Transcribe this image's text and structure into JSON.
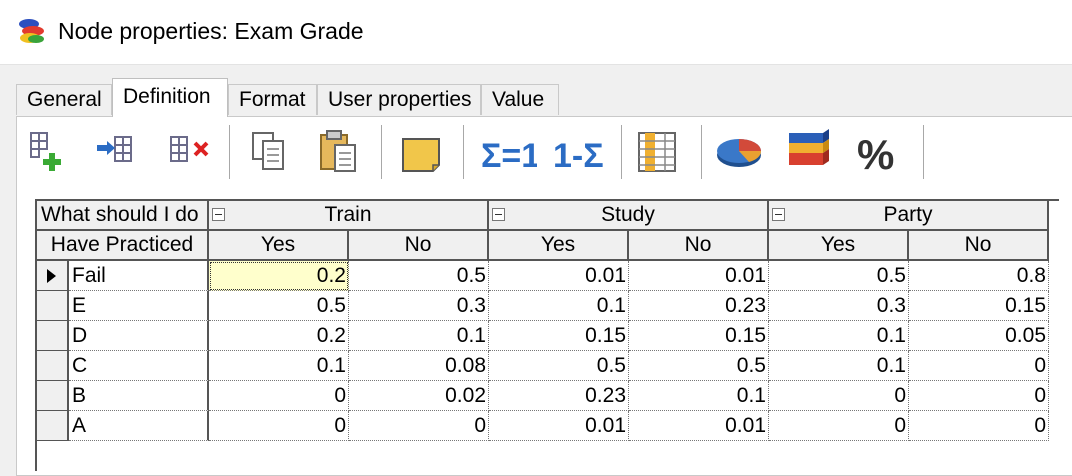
{
  "window": {
    "title": "Node properties: Exam Grade"
  },
  "tabs": [
    {
      "label": "General"
    },
    {
      "label": "Definition"
    },
    {
      "label": "Format"
    },
    {
      "label": "User properties"
    },
    {
      "label": "Value"
    }
  ],
  "active_tab": "Definition",
  "toolbar": {
    "buttons": [
      {
        "icon": "add-column-icon"
      },
      {
        "icon": "insert-column-icon"
      },
      {
        "icon": "delete-column-icon"
      },
      {
        "icon": "copy-icon"
      },
      {
        "icon": "paste-icon"
      },
      {
        "icon": "note-icon"
      },
      {
        "icon": "normalize-icon",
        "label": "Σ=1"
      },
      {
        "icon": "complement-icon",
        "label": "1-Σ"
      },
      {
        "icon": "columns-icon"
      },
      {
        "icon": "pie-chart-icon"
      },
      {
        "icon": "stacked-bars-icon"
      },
      {
        "icon": "percent-icon",
        "label": "%"
      }
    ]
  },
  "table": {
    "parent1_label": "What should I do",
    "parent2_label": "Have Practiced",
    "groups": [
      "Train",
      "Study",
      "Party"
    ],
    "subcols": [
      "Yes",
      "No",
      "Yes",
      "No",
      "Yes",
      "No"
    ],
    "rows": [
      {
        "state": "Fail",
        "values": [
          "0.2",
          "0.5",
          "0.01",
          "0.01",
          "0.5",
          "0.8"
        ]
      },
      {
        "state": "E",
        "values": [
          "0.5",
          "0.3",
          "0.1",
          "0.23",
          "0.3",
          "0.15"
        ]
      },
      {
        "state": "D",
        "values": [
          "0.2",
          "0.1",
          "0.15",
          "0.15",
          "0.1",
          "0.05"
        ]
      },
      {
        "state": "C",
        "values": [
          "0.1",
          "0.08",
          "0.5",
          "0.5",
          "0.1",
          "0"
        ]
      },
      {
        "state": "B",
        "values": [
          "0",
          "0.02",
          "0.23",
          "0.1",
          "0",
          "0"
        ]
      },
      {
        "state": "A",
        "values": [
          "0",
          "0",
          "0.01",
          "0.01",
          "0",
          "0"
        ]
      }
    ]
  },
  "colors": {
    "selected_cell": "#ffffcc",
    "accent": "#2b6cc4"
  }
}
